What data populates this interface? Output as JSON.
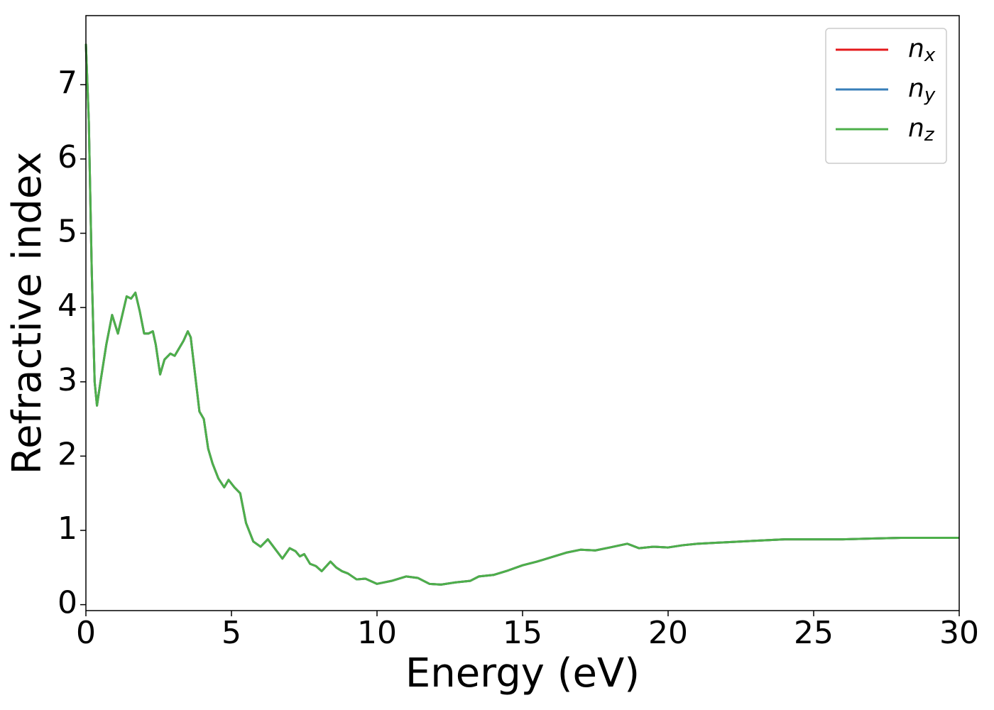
{
  "chart_data": {
    "type": "line",
    "xlabel": "Energy (eV)",
    "ylabel": "Refractive index",
    "x": [
      0,
      0.1,
      0.2,
      0.3,
      0.38,
      0.5,
      0.7,
      0.9,
      1.1,
      1.25,
      1.4,
      1.55,
      1.7,
      1.85,
      2.0,
      2.15,
      2.3,
      2.4,
      2.55,
      2.7,
      2.9,
      3.05,
      3.2,
      3.35,
      3.5,
      3.6,
      3.75,
      3.9,
      4.05,
      4.2,
      4.35,
      4.55,
      4.75,
      4.9,
      5.1,
      5.3,
      5.5,
      5.75,
      6.0,
      6.25,
      6.5,
      6.75,
      7.0,
      7.2,
      7.35,
      7.5,
      7.7,
      7.9,
      8.1,
      8.4,
      8.6,
      8.8,
      9.0,
      9.3,
      9.6,
      10.0,
      10.5,
      11.0,
      11.4,
      11.8,
      12.2,
      12.7,
      13.2,
      13.5,
      14.0,
      14.5,
      15.0,
      15.5,
      16.0,
      16.5,
      17.0,
      17.5,
      18.0,
      18.6,
      19.0,
      19.5,
      20.0,
      20.5,
      21.0,
      22.0,
      23.0,
      24.0,
      25.0,
      26.0,
      27.0,
      28.0,
      29.0,
      30.0
    ],
    "series": [
      {
        "name": "nx",
        "color": "#e41a1c",
        "values": [
          7.55,
          6.5,
          4.5,
          3.0,
          2.68,
          3.0,
          3.5,
          3.9,
          3.65,
          3.9,
          4.15,
          4.12,
          4.2,
          3.95,
          3.65,
          3.65,
          3.68,
          3.5,
          3.1,
          3.3,
          3.38,
          3.35,
          3.45,
          3.55,
          3.68,
          3.6,
          3.1,
          2.6,
          2.5,
          2.1,
          1.9,
          1.7,
          1.58,
          1.68,
          1.58,
          1.5,
          1.1,
          0.85,
          0.78,
          0.88,
          0.75,
          0.62,
          0.76,
          0.72,
          0.65,
          0.68,
          0.55,
          0.52,
          0.45,
          0.58,
          0.5,
          0.45,
          0.42,
          0.34,
          0.35,
          0.28,
          0.32,
          0.38,
          0.36,
          0.28,
          0.27,
          0.3,
          0.32,
          0.38,
          0.4,
          0.46,
          0.53,
          0.58,
          0.64,
          0.7,
          0.74,
          0.73,
          0.77,
          0.82,
          0.76,
          0.78,
          0.77,
          0.8,
          0.82,
          0.84,
          0.86,
          0.88,
          0.88,
          0.88,
          0.89,
          0.9,
          0.9,
          0.9
        ]
      },
      {
        "name": "ny",
        "color": "#377eb8",
        "values": [
          7.55,
          6.5,
          4.5,
          3.0,
          2.68,
          3.0,
          3.5,
          3.9,
          3.65,
          3.9,
          4.15,
          4.12,
          4.2,
          3.95,
          3.65,
          3.65,
          3.68,
          3.5,
          3.1,
          3.3,
          3.38,
          3.35,
          3.45,
          3.55,
          3.68,
          3.6,
          3.1,
          2.6,
          2.5,
          2.1,
          1.9,
          1.7,
          1.58,
          1.68,
          1.58,
          1.5,
          1.1,
          0.85,
          0.78,
          0.88,
          0.75,
          0.62,
          0.76,
          0.72,
          0.65,
          0.68,
          0.55,
          0.52,
          0.45,
          0.58,
          0.5,
          0.45,
          0.42,
          0.34,
          0.35,
          0.28,
          0.32,
          0.38,
          0.36,
          0.28,
          0.27,
          0.3,
          0.32,
          0.38,
          0.4,
          0.46,
          0.53,
          0.58,
          0.64,
          0.7,
          0.74,
          0.73,
          0.77,
          0.82,
          0.76,
          0.78,
          0.77,
          0.8,
          0.82,
          0.84,
          0.86,
          0.88,
          0.88,
          0.88,
          0.89,
          0.9,
          0.9,
          0.9
        ]
      },
      {
        "name": "nz",
        "color": "#4daf4a",
        "values": [
          7.55,
          6.5,
          4.5,
          3.0,
          2.68,
          3.0,
          3.5,
          3.9,
          3.65,
          3.9,
          4.15,
          4.12,
          4.2,
          3.95,
          3.65,
          3.65,
          3.68,
          3.5,
          3.1,
          3.3,
          3.38,
          3.35,
          3.45,
          3.55,
          3.68,
          3.6,
          3.1,
          2.6,
          2.5,
          2.1,
          1.9,
          1.7,
          1.58,
          1.68,
          1.58,
          1.5,
          1.1,
          0.85,
          0.78,
          0.88,
          0.75,
          0.62,
          0.76,
          0.72,
          0.65,
          0.68,
          0.55,
          0.52,
          0.45,
          0.58,
          0.5,
          0.45,
          0.42,
          0.34,
          0.35,
          0.28,
          0.32,
          0.38,
          0.36,
          0.28,
          0.27,
          0.3,
          0.32,
          0.38,
          0.4,
          0.46,
          0.53,
          0.58,
          0.64,
          0.7,
          0.74,
          0.73,
          0.77,
          0.82,
          0.76,
          0.78,
          0.77,
          0.8,
          0.82,
          0.84,
          0.86,
          0.88,
          0.88,
          0.88,
          0.89,
          0.9,
          0.9,
          0.9
        ]
      }
    ],
    "xlim": [
      0,
      30
    ],
    "xticks": [
      0,
      5,
      10,
      15,
      20,
      25,
      30
    ],
    "ylim": [
      -0.08,
      7.93
    ],
    "yticks": [
      0,
      1,
      2,
      3,
      4,
      5,
      6,
      7
    ],
    "grid": false,
    "legend": "upper right"
  }
}
